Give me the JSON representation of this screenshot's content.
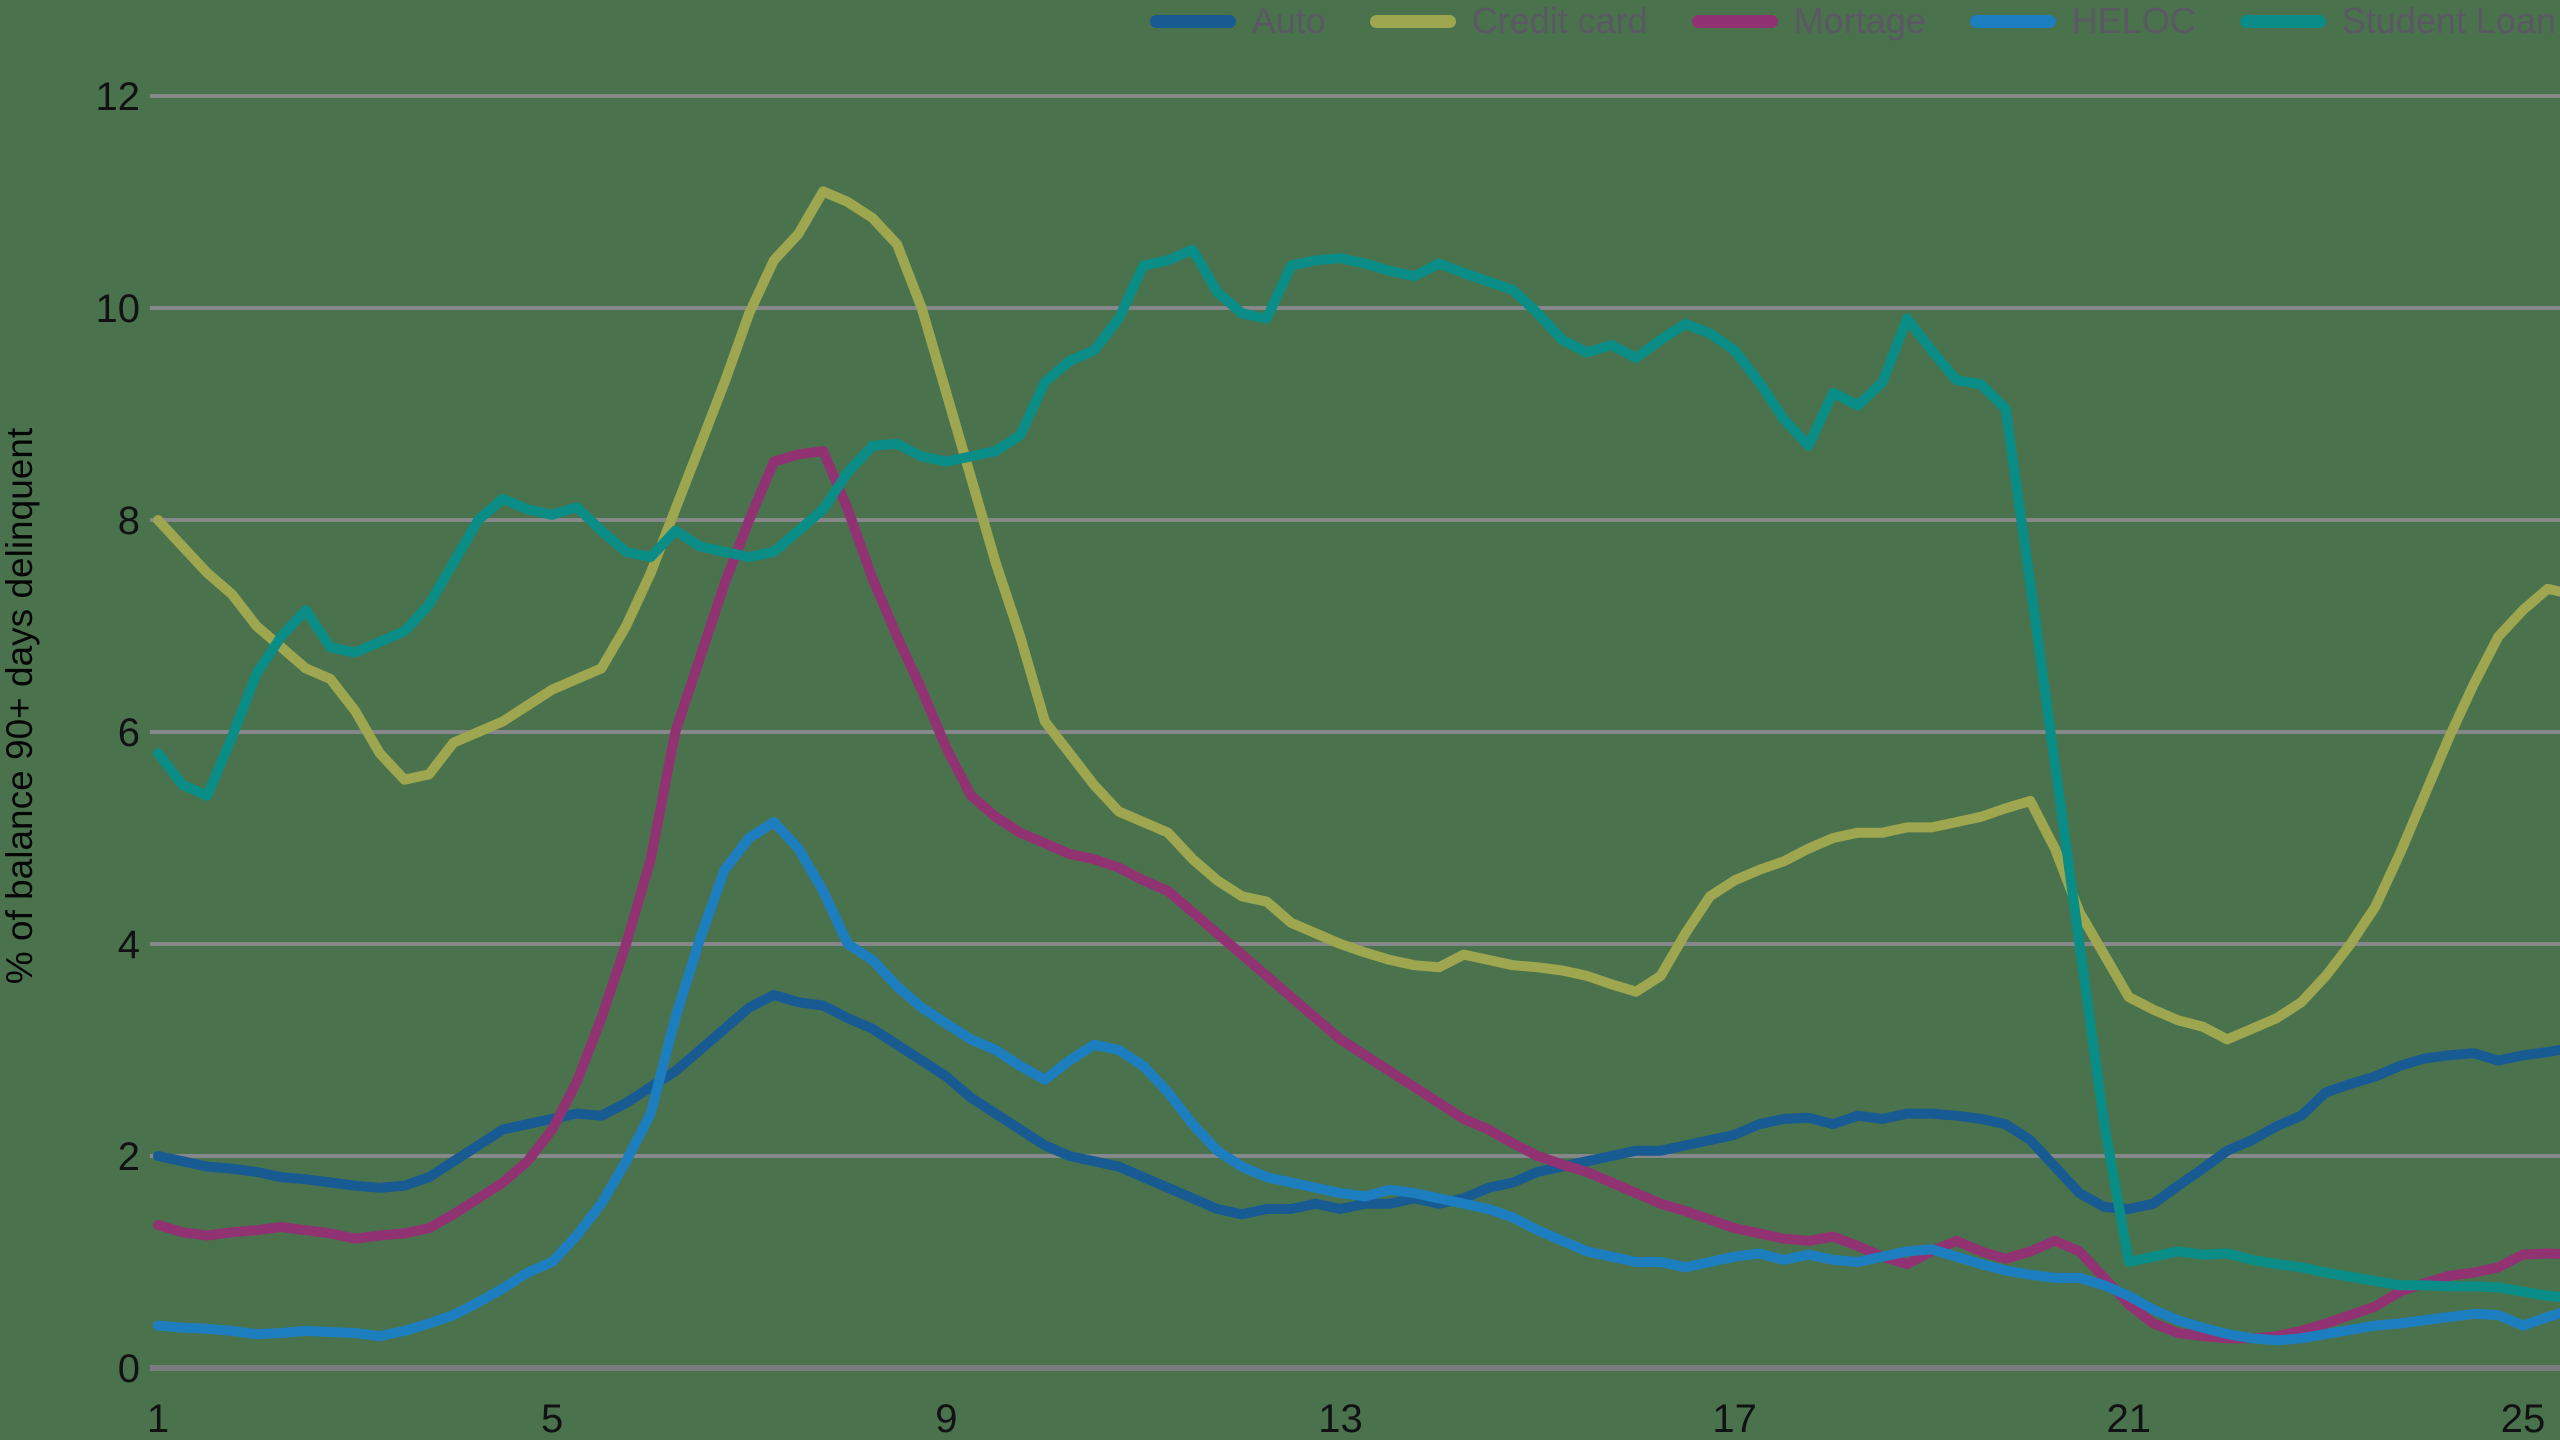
{
  "chart_data": {
    "type": "line",
    "title": "",
    "xlabel": "",
    "ylabel": "% of balance 90+ days delinquent",
    "legend_position": "top-right",
    "grid": "horizontal",
    "xlim": [
      1,
      25.5
    ],
    "ylim": [
      0,
      12
    ],
    "x_ticks": [
      1,
      5,
      9,
      13,
      17,
      21,
      25
    ],
    "y_ticks": [
      0,
      2,
      4,
      6,
      8,
      10,
      12
    ],
    "x_start": 1,
    "x_step": 0.25,
    "colors": {
      "background": "#4a734d",
      "gridline": "#85878a",
      "baseline": "#7b7d80",
      "tick_label": "#121214",
      "legend_text": "#5a5862"
    },
    "series": [
      {
        "name": "Auto",
        "color": "#185a92",
        "values": [
          2.0,
          1.95,
          1.9,
          1.88,
          1.85,
          1.8,
          1.78,
          1.75,
          1.72,
          1.7,
          1.72,
          1.8,
          1.95,
          2.1,
          2.25,
          2.3,
          2.35,
          2.4,
          2.38,
          2.5,
          2.65,
          2.8,
          3.0,
          3.2,
          3.4,
          3.52,
          3.45,
          3.42,
          3.3,
          3.2,
          3.05,
          2.9,
          2.75,
          2.55,
          2.4,
          2.25,
          2.1,
          2.0,
          1.95,
          1.9,
          1.8,
          1.7,
          1.6,
          1.5,
          1.45,
          1.5,
          1.5,
          1.55,
          1.5,
          1.55,
          1.55,
          1.6,
          1.55,
          1.6,
          1.7,
          1.75,
          1.85,
          1.9,
          1.95,
          2.0,
          2.05,
          2.05,
          2.1,
          2.15,
          2.2,
          2.3,
          2.35,
          2.36,
          2.3,
          2.38,
          2.35,
          2.4,
          2.4,
          2.38,
          2.35,
          2.3,
          2.15,
          1.9,
          1.65,
          1.52,
          1.5,
          1.55,
          1.72,
          1.88,
          2.05,
          2.15,
          2.28,
          2.38,
          2.6,
          2.68,
          2.75,
          2.85,
          2.92,
          2.95,
          2.97,
          2.9,
          2.95,
          2.98,
          3.02
        ]
      },
      {
        "name": "Credit card",
        "color": "#9ea64f",
        "values": [
          8.0,
          7.75,
          7.5,
          7.3,
          7.0,
          6.8,
          6.6,
          6.5,
          6.2,
          5.8,
          5.55,
          5.6,
          5.9,
          6.0,
          6.1,
          6.25,
          6.4,
          6.5,
          6.6,
          7.0,
          7.5,
          8.1,
          8.7,
          9.3,
          9.95,
          10.45,
          10.7,
          11.1,
          11.0,
          10.85,
          10.6,
          10.0,
          9.2,
          8.4,
          7.6,
          6.9,
          6.1,
          5.8,
          5.5,
          5.25,
          5.15,
          5.05,
          4.8,
          4.6,
          4.45,
          4.4,
          4.2,
          4.1,
          4.0,
          3.92,
          3.85,
          3.8,
          3.78,
          3.9,
          3.85,
          3.8,
          3.78,
          3.75,
          3.7,
          3.62,
          3.55,
          3.7,
          4.1,
          4.45,
          4.6,
          4.7,
          4.78,
          4.9,
          5.0,
          5.05,
          5.05,
          5.1,
          5.1,
          5.15,
          5.2,
          5.28,
          5.35,
          4.9,
          4.3,
          3.9,
          3.5,
          3.38,
          3.28,
          3.22,
          3.1,
          3.2,
          3.3,
          3.45,
          3.7,
          4.0,
          4.35,
          4.85,
          5.4,
          5.95,
          6.45,
          6.9,
          7.15,
          7.35,
          7.3
        ]
      },
      {
        "name": "Mortage",
        "color": "#913273",
        "values": [
          1.35,
          1.28,
          1.25,
          1.28,
          1.3,
          1.33,
          1.3,
          1.27,
          1.22,
          1.25,
          1.27,
          1.32,
          1.45,
          1.6,
          1.75,
          1.95,
          2.25,
          2.7,
          3.3,
          4.0,
          4.8,
          6.0,
          6.7,
          7.4,
          8.0,
          8.55,
          8.62,
          8.65,
          8.1,
          7.45,
          6.9,
          6.4,
          5.85,
          5.4,
          5.2,
          5.05,
          4.95,
          4.85,
          4.8,
          4.72,
          4.6,
          4.5,
          4.3,
          4.1,
          3.9,
          3.7,
          3.5,
          3.3,
          3.1,
          2.95,
          2.8,
          2.65,
          2.5,
          2.35,
          2.25,
          2.12,
          2.0,
          1.92,
          1.85,
          1.75,
          1.65,
          1.55,
          1.48,
          1.4,
          1.32,
          1.27,
          1.22,
          1.2,
          1.24,
          1.15,
          1.05,
          0.98,
          1.1,
          1.2,
          1.1,
          1.03,
          1.1,
          1.2,
          1.1,
          0.85,
          0.6,
          0.42,
          0.33,
          0.3,
          0.28,
          0.28,
          0.3,
          0.35,
          0.42,
          0.5,
          0.58,
          0.72,
          0.8,
          0.87,
          0.9,
          0.95,
          1.07,
          1.08,
          1.07
        ]
      },
      {
        "name": "HELOC",
        "color": "#1d7ebf",
        "values": [
          0.4,
          0.38,
          0.37,
          0.35,
          0.32,
          0.33,
          0.35,
          0.34,
          0.33,
          0.3,
          0.35,
          0.42,
          0.5,
          0.62,
          0.75,
          0.9,
          1.0,
          1.25,
          1.55,
          1.95,
          2.4,
          3.3,
          4.05,
          4.7,
          5.0,
          5.15,
          4.9,
          4.5,
          4.0,
          3.85,
          3.6,
          3.4,
          3.25,
          3.1,
          3.0,
          2.85,
          2.72,
          2.9,
          3.05,
          3.0,
          2.85,
          2.6,
          2.3,
          2.05,
          1.9,
          1.8,
          1.75,
          1.7,
          1.65,
          1.62,
          1.68,
          1.65,
          1.6,
          1.55,
          1.5,
          1.42,
          1.3,
          1.2,
          1.1,
          1.05,
          1.0,
          1.0,
          0.95,
          1.0,
          1.05,
          1.08,
          1.02,
          1.07,
          1.02,
          1.0,
          1.05,
          1.1,
          1.12,
          1.05,
          0.98,
          0.92,
          0.88,
          0.85,
          0.85,
          0.78,
          0.68,
          0.55,
          0.45,
          0.38,
          0.32,
          0.28,
          0.26,
          0.28,
          0.32,
          0.36,
          0.4,
          0.42,
          0.45,
          0.48,
          0.51,
          0.5,
          0.4,
          0.48,
          0.55
        ]
      },
      {
        "name": "Student Loan",
        "color": "#0a8c87",
        "values": [
          5.8,
          5.5,
          5.4,
          5.95,
          6.55,
          6.9,
          7.15,
          6.8,
          6.75,
          6.85,
          6.95,
          7.2,
          7.6,
          8.0,
          8.2,
          8.1,
          8.05,
          8.12,
          7.9,
          7.7,
          7.65,
          7.9,
          7.75,
          7.7,
          7.65,
          7.7,
          7.9,
          8.1,
          8.45,
          8.7,
          8.72,
          8.6,
          8.55,
          8.6,
          8.65,
          8.8,
          9.3,
          9.5,
          9.6,
          9.9,
          10.4,
          10.45,
          10.55,
          10.15,
          9.95,
          9.9,
          10.4,
          10.45,
          10.47,
          10.42,
          10.35,
          10.3,
          10.42,
          10.33,
          10.25,
          10.17,
          9.95,
          9.7,
          9.58,
          9.65,
          9.53,
          9.7,
          9.85,
          9.76,
          9.6,
          9.3,
          8.95,
          8.7,
          9.2,
          9.08,
          9.3,
          9.9,
          9.6,
          9.32,
          9.28,
          9.05,
          7.4,
          5.7,
          4.0,
          2.3,
          1.0,
          1.05,
          1.1,
          1.07,
          1.08,
          1.02,
          0.98,
          0.95,
          0.9,
          0.86,
          0.82,
          0.78,
          0.78,
          0.77,
          0.77,
          0.76,
          0.72,
          0.68,
          0.66
        ]
      }
    ]
  }
}
